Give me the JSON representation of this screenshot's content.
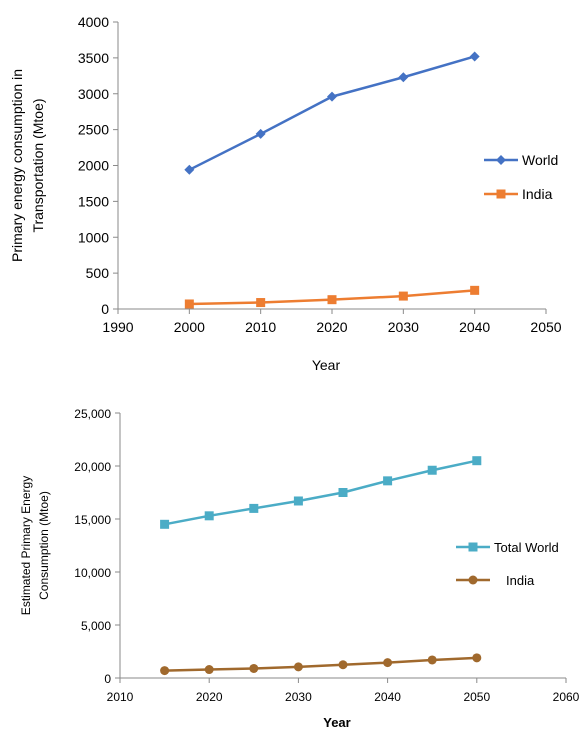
{
  "chart_data": [
    {
      "type": "line",
      "title": "",
      "xlabel": "Year",
      "ylabel_lines": [
        "Primary energy consumption in",
        "Transportation (Mtoe)"
      ],
      "xlim": [
        1990,
        2050
      ],
      "ylim": [
        0,
        4000
      ],
      "x_ticks": [
        "1990",
        "2000",
        "2010",
        "2020",
        "2030",
        "2040",
        "2050"
      ],
      "y_ticks": [
        "0",
        "500",
        "1000",
        "1500",
        "2000",
        "2500",
        "3000",
        "3500",
        "4000"
      ],
      "grid": false,
      "legend_position": "right",
      "series": [
        {
          "name": "World",
          "color": "#4472C4",
          "marker": "diamond",
          "x": [
            2000,
            2010,
            2020,
            2030,
            2040
          ],
          "values": [
            1940,
            2440,
            2960,
            3230,
            3520
          ]
        },
        {
          "name": "India",
          "color": "#ED7D31",
          "marker": "square",
          "x": [
            2000,
            2010,
            2020,
            2030,
            2040
          ],
          "values": [
            70,
            90,
            130,
            180,
            260
          ]
        }
      ]
    },
    {
      "type": "line",
      "title": "",
      "xlabel": "Year",
      "ylabel_lines": [
        "Estimated Primary Energy",
        "Consumption (Mtoe)"
      ],
      "xlim": [
        2010,
        2060
      ],
      "ylim": [
        0,
        25000
      ],
      "x_ticks": [
        "2010",
        "2020",
        "2030",
        "2040",
        "2050",
        "2060"
      ],
      "y_ticks": [
        "0",
        "5,000",
        "10,000",
        "15,000",
        "20,000",
        "25,000"
      ],
      "grid": false,
      "legend_position": "right",
      "series": [
        {
          "name": "Total World",
          "color": "#4BACC6",
          "marker": "square",
          "x": [
            2015,
            2020,
            2025,
            2030,
            2035,
            2040,
            2045,
            2050
          ],
          "values": [
            14500,
            15300,
            16000,
            16700,
            17500,
            18600,
            19600,
            20500
          ]
        },
        {
          "name": "India",
          "color": "#A0692D",
          "marker": "circle",
          "x": [
            2015,
            2020,
            2025,
            2030,
            2035,
            2040,
            2045,
            2050
          ],
          "values": [
            700,
            800,
            900,
            1050,
            1250,
            1450,
            1700,
            1900
          ]
        }
      ]
    }
  ]
}
